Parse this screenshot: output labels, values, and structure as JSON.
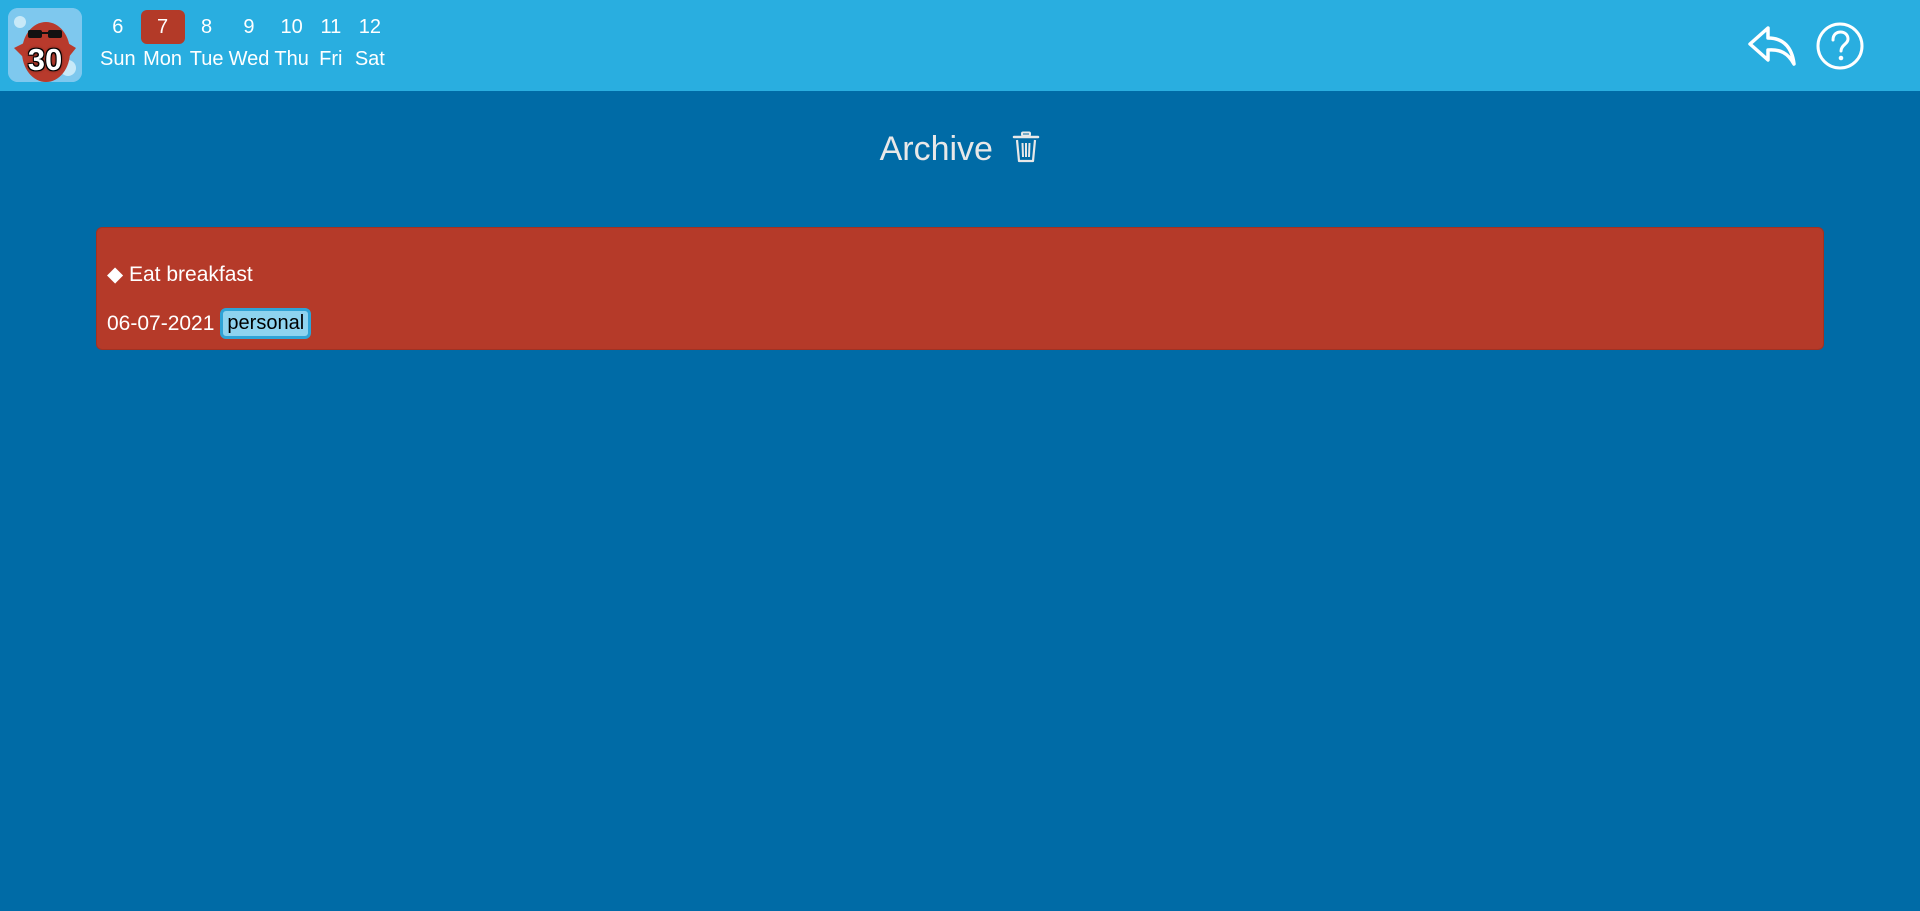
{
  "app": {
    "logo_number": "30"
  },
  "week": {
    "days": [
      {
        "num": "6",
        "name": "Sun",
        "active": false
      },
      {
        "num": "7",
        "name": "Mon",
        "active": true
      },
      {
        "num": "8",
        "name": "Tue",
        "active": false
      },
      {
        "num": "9",
        "name": "Wed",
        "active": false
      },
      {
        "num": "10",
        "name": "Thu",
        "active": false
      },
      {
        "num": "11",
        "name": "Fri",
        "active": false
      },
      {
        "num": "12",
        "name": "Sat",
        "active": false
      }
    ]
  },
  "header_icons": {
    "back": "reply-arrow-icon",
    "help": "help-circle-icon"
  },
  "page": {
    "title": "Archive",
    "title_icon": "trash-icon"
  },
  "tasks": [
    {
      "bullet": "◆",
      "title": "Eat breakfast",
      "date": "06-07-2021",
      "tag": "personal"
    }
  ],
  "colors": {
    "topbar": "#29aee0",
    "background": "#006ba6",
    "active_day": "#b33a28",
    "task_card": "#b53a29",
    "tag_bg": "#8ed3ef",
    "tag_border": "#2fa3d6"
  }
}
